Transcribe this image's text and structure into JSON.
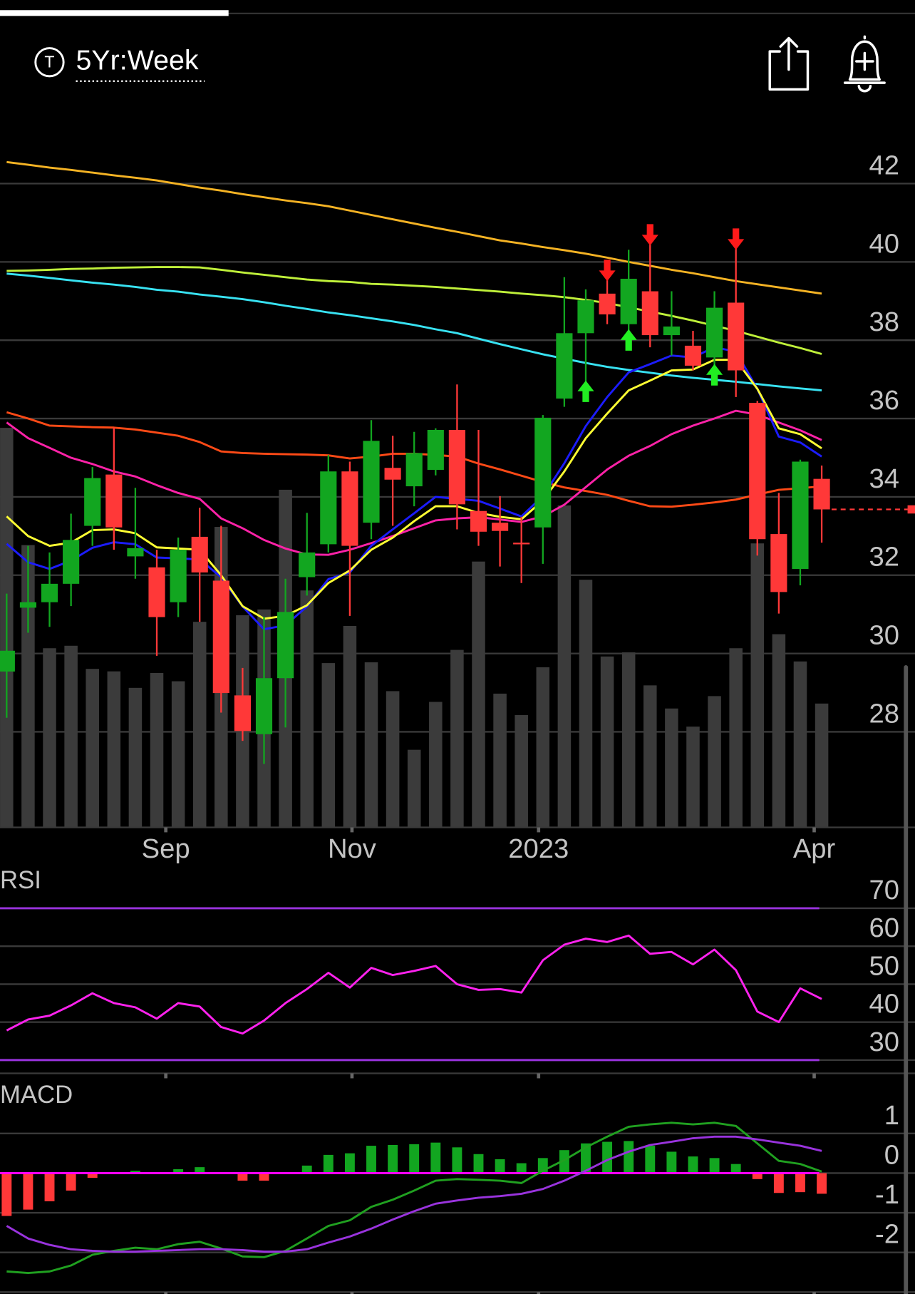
{
  "header": {
    "symbol_icon": "T",
    "period": "5Yr:Week"
  },
  "chart_data": [
    {
      "type": "candlestick",
      "categories": [
        null,
        null,
        null,
        null,
        null,
        null,
        null,
        null,
        null,
        null,
        null,
        null,
        null,
        null,
        null,
        null,
        null,
        null,
        null,
        null,
        null,
        null,
        null,
        null,
        null,
        null,
        null,
        null,
        null,
        null,
        null,
        null,
        null,
        null,
        null,
        null,
        null,
        null,
        null
      ],
      "open": [
        29.54,
        31.17,
        31.31,
        31.78,
        33.26,
        34.57,
        32.48,
        32.2,
        31.31,
        32.98,
        31.86,
        28.93,
        27.94,
        29.37,
        31.95,
        32.79,
        34.65,
        33.34,
        34.74,
        34.27,
        34.69,
        35.71,
        33.64,
        33.34,
        32.83,
        33.22,
        36.51,
        38.18,
        39.19,
        38.41,
        39.25,
        38.13,
        37.86,
        37.56,
        38.96,
        36.4,
        33.05,
        32.16,
        34.46
      ],
      "high": [
        31.53,
        32.75,
        32.58,
        33.57,
        34.76,
        35.77,
        34.23,
        32.65,
        32.96,
        33.72,
        33.26,
        29.63,
        30.93,
        31.91,
        33.59,
        35.07,
        34.9,
        35.96,
        35.56,
        35.66,
        35.75,
        36.87,
        35.71,
        34.02,
        33.49,
        36.09,
        39.61,
        39.3,
        39.55,
        40.31,
        40.46,
        39.25,
        38.24,
        39.25,
        40.35,
        36.45,
        34.1,
        34.95,
        34.8
      ],
      "low": [
        28.36,
        30.53,
        30.68,
        31.21,
        32.75,
        32.65,
        31.91,
        29.94,
        30.93,
        30.81,
        28.49,
        27.77,
        27.18,
        28.11,
        31.48,
        32.58,
        30.96,
        32.92,
        33.26,
        33.76,
        34.55,
        33.17,
        32.75,
        32.22,
        31.8,
        32.29,
        36.3,
        36.76,
        38.41,
        38.07,
        37.82,
        37.61,
        37.23,
        37.18,
        36.55,
        32.5,
        31.02,
        31.74,
        32.83
      ],
      "close": [
        30.07,
        31.31,
        31.78,
        32.9,
        34.48,
        33.22,
        32.69,
        30.93,
        32.65,
        32.07,
        28.99,
        28.02,
        29.37,
        31.06,
        32.58,
        34.65,
        32.75,
        35.43,
        34.44,
        35.12,
        35.71,
        33.81,
        33.11,
        33.13,
        32.79,
        36.02,
        38.18,
        39.02,
        38.66,
        39.57,
        38.13,
        38.35,
        37.35,
        38.83,
        37.23,
        32.92,
        31.57,
        34.9,
        33.68
      ],
      "up_color": "#12a620",
      "down_color": "#ff3838",
      "volume": {
        "color": "#3b3b3b",
        "ylim": [
          0,
          852
        ],
        "values": [
          484,
          342,
          217,
          220,
          192,
          189,
          169,
          187,
          177,
          249,
          364,
          257,
          264,
          409,
          287,
          199,
          244,
          200,
          165,
          94,
          152,
          215,
          322,
          162,
          136,
          194,
          390,
          300,
          207,
          212,
          172,
          144,
          122,
          159,
          217,
          344,
          234,
          201,
          150
        ]
      },
      "series": [
        {
          "color": "#f5b324",
          "values": [
            42.55,
            42.48,
            42.41,
            42.35,
            42.28,
            42.21,
            42.15,
            42.08,
            41.99,
            41.9,
            41.82,
            41.73,
            41.65,
            41.57,
            41.5,
            41.42,
            41.31,
            41.2,
            41.09,
            40.98,
            40.87,
            40.77,
            40.66,
            40.55,
            40.47,
            40.38,
            40.3,
            40.21,
            40.11,
            40.0,
            39.9,
            39.8,
            39.71,
            39.61,
            39.51,
            39.43,
            39.35,
            39.27,
            39.19
          ]
        },
        {
          "color": "#bff03a",
          "values": [
            39.77,
            39.78,
            39.8,
            39.82,
            39.83,
            39.85,
            39.86,
            39.87,
            39.87,
            39.86,
            39.8,
            39.73,
            39.67,
            39.61,
            39.55,
            39.51,
            39.49,
            39.44,
            39.42,
            39.39,
            39.36,
            39.32,
            39.28,
            39.24,
            39.19,
            39.15,
            39.1,
            39.03,
            38.95,
            38.84,
            38.73,
            38.62,
            38.5,
            38.37,
            38.24,
            38.09,
            37.94,
            37.8,
            37.65
          ]
        },
        {
          "color": "#38e2f2",
          "values": [
            39.7,
            39.65,
            39.59,
            39.53,
            39.47,
            39.42,
            39.36,
            39.29,
            39.24,
            39.17,
            39.11,
            39.05,
            38.97,
            38.88,
            38.8,
            38.71,
            38.64,
            38.56,
            38.48,
            38.39,
            38.28,
            38.18,
            38.04,
            37.9,
            37.77,
            37.64,
            37.53,
            37.42,
            37.32,
            37.24,
            37.17,
            37.1,
            37.04,
            36.99,
            36.94,
            36.88,
            36.82,
            36.77,
            36.72
          ]
        },
        {
          "color": "#ff4a16",
          "values": [
            36.16,
            36.0,
            35.82,
            35.8,
            35.78,
            35.77,
            35.72,
            35.64,
            35.56,
            35.4,
            35.16,
            35.12,
            35.1,
            35.09,
            35.08,
            35.06,
            34.98,
            35.03,
            35.1,
            35.1,
            35.07,
            35.03,
            34.85,
            34.7,
            34.54,
            34.38,
            34.24,
            34.15,
            34.05,
            33.9,
            33.76,
            33.75,
            33.8,
            33.86,
            33.93,
            34.06,
            34.18,
            34.22,
            34.27
          ]
        },
        {
          "color": "#ff22a8",
          "values": [
            35.9,
            35.5,
            35.25,
            35.0,
            34.84,
            34.65,
            34.52,
            34.3,
            34.1,
            33.95,
            33.45,
            33.2,
            32.9,
            32.68,
            32.53,
            32.52,
            32.65,
            32.82,
            33.0,
            33.2,
            33.4,
            33.45,
            33.48,
            33.42,
            33.36,
            33.5,
            33.8,
            34.25,
            34.7,
            35.05,
            35.3,
            35.6,
            35.82,
            36.0,
            36.2,
            36.1,
            35.9,
            35.7,
            35.45
          ]
        },
        {
          "color": "#1c1cff",
          "values": [
            32.8,
            32.33,
            32.16,
            32.37,
            32.7,
            32.84,
            32.79,
            32.45,
            32.43,
            32.4,
            31.95,
            31.2,
            30.62,
            30.72,
            31.2,
            31.9,
            32.07,
            32.75,
            33.17,
            33.58,
            34.0,
            33.95,
            33.9,
            33.7,
            33.5,
            34.02,
            34.86,
            35.81,
            36.55,
            37.18,
            37.39,
            37.61,
            37.56,
            37.82,
            37.71,
            36.76,
            35.54,
            35.39,
            35.03
          ]
        },
        {
          "color": "#ffff33",
          "values": [
            33.5,
            33.0,
            32.75,
            32.83,
            33.15,
            33.17,
            33.07,
            32.71,
            32.68,
            32.65,
            32.0,
            31.21,
            30.89,
            30.96,
            31.23,
            31.8,
            32.12,
            32.65,
            32.96,
            33.38,
            33.76,
            33.76,
            33.59,
            33.49,
            33.43,
            33.91,
            34.65,
            35.5,
            36.13,
            36.72,
            36.97,
            37.23,
            37.25,
            37.5,
            37.5,
            36.76,
            35.75,
            35.6,
            35.24
          ]
        }
      ],
      "buy_signals": [
        27,
        29,
        33
      ],
      "buy_color": "#22ee22",
      "sell_signals": [
        28,
        30,
        34
      ],
      "sell_color": "#ff1a1a",
      "last_price_line": true,
      "xlim": [
        -0.31,
        42.35
      ],
      "xticks": [
        {
          "value": 7.42,
          "label": "Sep"
        },
        {
          "value": 16.1,
          "label": "Nov"
        },
        {
          "value": 24.8,
          "label": "2023"
        },
        {
          "value": 37.65,
          "label": "Apr"
        }
      ],
      "ylim": [
        25.56,
        43.52
      ],
      "yticks": [
        42,
        40,
        38,
        36,
        34,
        32,
        30,
        28
      ],
      "grid": true
    },
    {
      "type": "rsi",
      "title": "RSI",
      "values": [
        37.8,
        40.7,
        41.7,
        44.4,
        47.6,
        45.0,
        43.9,
        40.9,
        45.0,
        44.1,
        38.7,
        37.0,
        40.4,
        45.0,
        48.7,
        53.0,
        49.1,
        54.3,
        52.4,
        53.5,
        54.8,
        50.0,
        48.5,
        48.7,
        47.8,
        56.3,
        60.4,
        62.0,
        61.1,
        62.8,
        58.0,
        58.5,
        55.2,
        59.1,
        53.7,
        42.8,
        40.0,
        48.9,
        46.1
      ],
      "color": "#ff22ee",
      "bands": [
        70,
        30
      ],
      "band_color": "#9933dd",
      "ylim": [
        26.5,
        78.7
      ],
      "yticks": [
        70,
        60,
        50,
        40,
        30
      ],
      "grid": true
    },
    {
      "type": "macd",
      "title": "MACD",
      "histogram": {
        "up_color": "#12a620",
        "down_color": "#ff3838",
        "values": [
          -1.08,
          -0.92,
          -0.71,
          -0.44,
          -0.12,
          0,
          0.06,
          0,
          0.1,
          0.15,
          0,
          -0.19,
          -0.19,
          0,
          0.19,
          0.46,
          0.5,
          0.69,
          0.71,
          0.73,
          0.77,
          0.65,
          0.48,
          0.35,
          0.25,
          0.38,
          0.58,
          0.75,
          0.79,
          0.81,
          0.69,
          0.54,
          0.42,
          0.38,
          0.23,
          -0.15,
          -0.5,
          -0.48,
          -0.52
        ]
      },
      "series": [
        {
          "color": "#20a020",
          "values": [
            -2.48,
            -2.52,
            -2.48,
            -2.33,
            -2.06,
            -1.96,
            -1.88,
            -1.92,
            -1.79,
            -1.73,
            -1.9,
            -2.1,
            -2.12,
            -1.96,
            -1.65,
            -1.33,
            -1.19,
            -0.85,
            -0.67,
            -0.44,
            -0.19,
            -0.15,
            -0.17,
            -0.19,
            -0.25,
            0.06,
            0.33,
            0.65,
            0.92,
            1.17,
            1.23,
            1.27,
            1.23,
            1.27,
            1.19,
            0.75,
            0.31,
            0.23,
            0.04
          ]
        },
        {
          "color": "#9933dd",
          "values": [
            -1.33,
            -1.65,
            -1.81,
            -1.92,
            -1.96,
            -1.98,
            -1.98,
            -1.96,
            -1.94,
            -1.92,
            -1.92,
            -1.94,
            -1.98,
            -1.98,
            -1.92,
            -1.75,
            -1.6,
            -1.4,
            -1.17,
            -0.96,
            -0.77,
            -0.69,
            -0.62,
            -0.58,
            -0.52,
            -0.4,
            -0.19,
            0.06,
            0.33,
            0.54,
            0.71,
            0.79,
            0.88,
            0.92,
            0.92,
            0.85,
            0.77,
            0.69,
            0.56
          ]
        }
      ],
      "zero_line": {
        "value": 0,
        "color": "#ff00ff"
      },
      "ylim": [
        -3.0,
        2.1
      ],
      "yticks": [
        1,
        0,
        -1,
        -2
      ],
      "grid": true
    }
  ]
}
